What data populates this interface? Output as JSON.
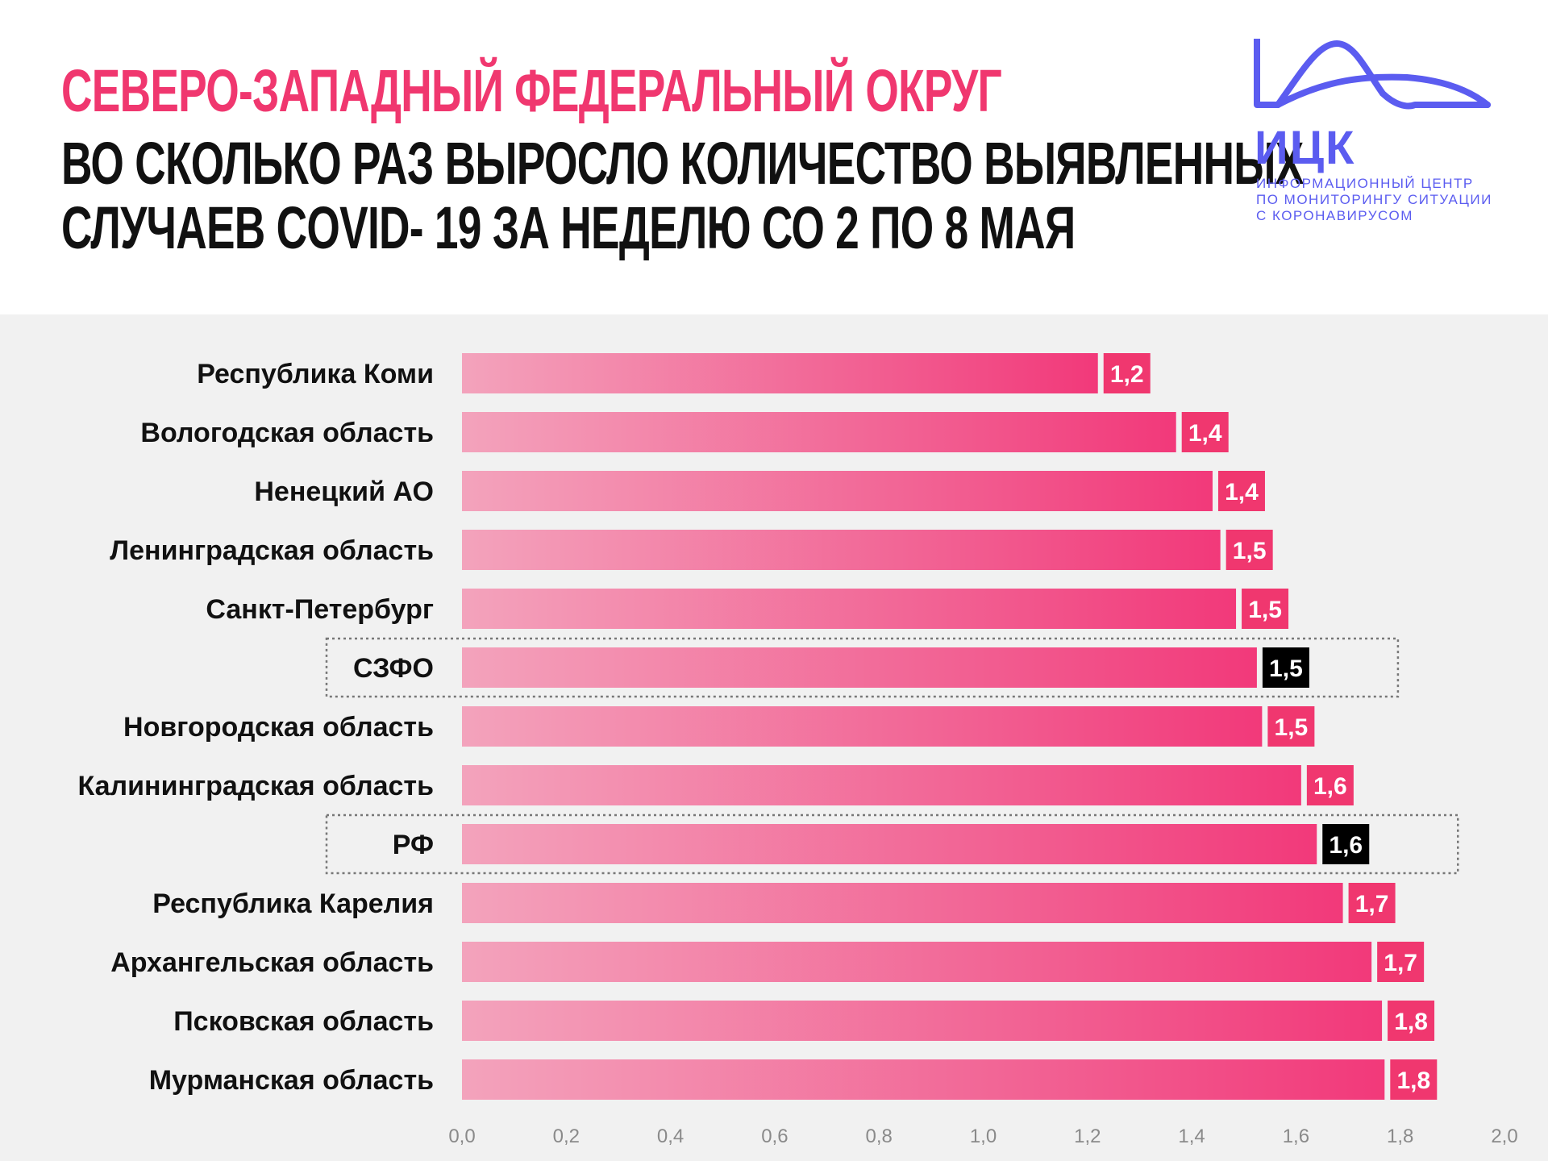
{
  "header": {
    "title_line1": "СЕВЕРО-ЗАПАДНЫЙ ФЕДЕРАЛЬНЫЙ ОКРУГ",
    "title_line2": "ВО СКОЛЬКО РАЗ ВЫРОСЛО КОЛИЧЕСТВО ВЫЯВЛЕННЫХ",
    "title_line3": "СЛУЧАЕВ  COVID- 19 ЗА НЕДЕЛЮ СО 2 ПО 8 МАЯ"
  },
  "logo": {
    "abbr": "ИЦК",
    "line1": "ИНФОРМАЦИОННЫЙ ЦЕНТР",
    "line2": "ПО МОНИТОРИНГУ СИТУАЦИИ",
    "line3": "С КОРОНАВИРУСОМ",
    "color": "#5b5cf0"
  },
  "colors": {
    "accent": "#f0376f",
    "bar_start": "#f3a3bc",
    "bar_end": "#f2397a",
    "value_box": "#f0376f",
    "highlight_box": "#000000",
    "chart_bg": "#f1f1f1"
  },
  "chart_data": {
    "type": "bar",
    "orientation": "horizontal",
    "categories": [
      "Республика Коми",
      "Вологодская область",
      "Ненецкий АО",
      "Ленинградская область",
      "Санкт-Петербург",
      "СЗФО",
      "Новгородская область",
      "Калининградская область",
      "РФ",
      "Республика Карелия",
      "Архангельская область",
      "Псковская область",
      "Мурманская область"
    ],
    "values": [
      1.22,
      1.37,
      1.44,
      1.455,
      1.485,
      1.525,
      1.535,
      1.61,
      1.64,
      1.69,
      1.745,
      1.765,
      1.77
    ],
    "value_labels": [
      "1,2",
      "1,4",
      "1,4",
      "1,5",
      "1,5",
      "1,5",
      "1,5",
      "1,6",
      "1,6",
      "1,7",
      "1,7",
      "1,8",
      "1,8"
    ],
    "highlighted": [
      "СЗФО",
      "РФ"
    ],
    "xlim": [
      0,
      2.0
    ],
    "xticks": [
      "0,0",
      "0,2",
      "0,4",
      "0,6",
      "0,8",
      "1,0",
      "1,2",
      "1,4",
      "1,6",
      "1,8",
      "2,0"
    ],
    "grid": false
  }
}
